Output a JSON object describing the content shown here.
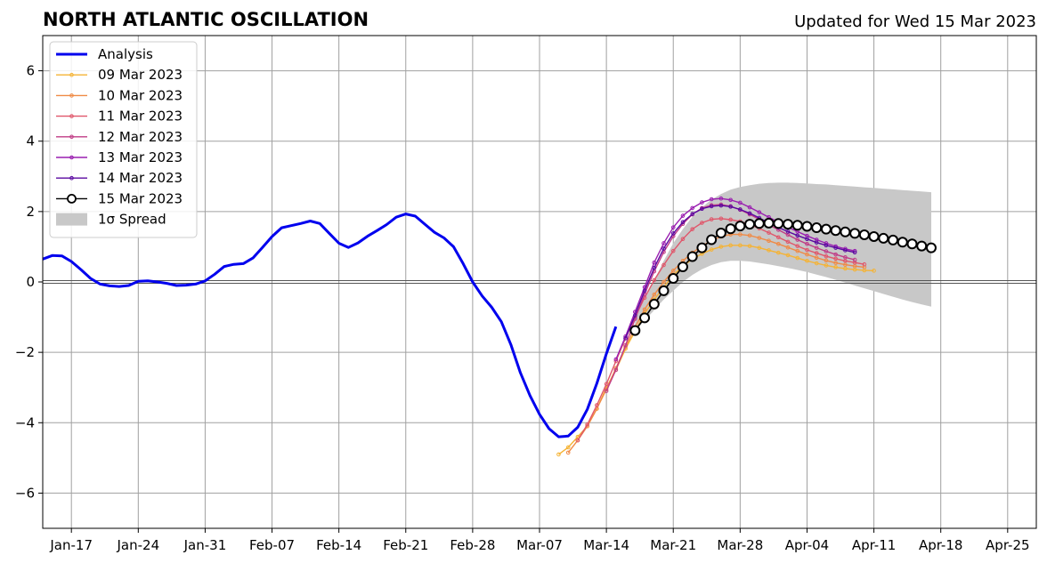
{
  "chart_data": {
    "type": "line",
    "title": "NORTH ATLANTIC OSCILLATION",
    "subtitle": "Updated for Wed 15 Mar 2023",
    "xlabel": "",
    "ylabel": "",
    "x_start": "2023-01-14",
    "xlim": [
      0,
      104
    ],
    "ylim": [
      -7,
      7
    ],
    "yticks": [
      -6,
      -4,
      -2,
      0,
      2,
      4,
      6
    ],
    "ytick_labels": [
      "−6",
      "−4",
      "−2",
      "0",
      "2",
      "4",
      "6"
    ],
    "xticks": [
      {
        "x": 3,
        "label": "Jan-17"
      },
      {
        "x": 10,
        "label": "Jan-24"
      },
      {
        "x": 17,
        "label": "Jan-31"
      },
      {
        "x": 24,
        "label": "Feb-07"
      },
      {
        "x": 31,
        "label": "Feb-14"
      },
      {
        "x": 38,
        "label": "Feb-21"
      },
      {
        "x": 45,
        "label": "Feb-28"
      },
      {
        "x": 52,
        "label": "Mar-07"
      },
      {
        "x": 59,
        "label": "Mar-14"
      },
      {
        "x": 66,
        "label": "Mar-21"
      },
      {
        "x": 73,
        "label": "Mar-28"
      },
      {
        "x": 80,
        "label": "Apr-04"
      },
      {
        "x": 87,
        "label": "Apr-11"
      },
      {
        "x": 94,
        "label": "Apr-18"
      },
      {
        "x": 101,
        "label": "Apr-25"
      }
    ],
    "grid": true,
    "legend_position": "top-left",
    "analysis": {
      "name": "Analysis",
      "color": "#0000ee",
      "x_start": 0,
      "values": [
        0.65,
        0.75,
        0.74,
        0.58,
        0.35,
        0.1,
        -0.06,
        -0.11,
        -0.13,
        -0.1,
        0.02,
        0.03,
        0.0,
        -0.04,
        -0.1,
        -0.09,
        -0.06,
        0.03,
        0.22,
        0.44,
        0.5,
        0.52,
        0.68,
        0.98,
        1.29,
        1.54,
        1.6,
        1.66,
        1.73,
        1.66,
        1.38,
        1.1,
        0.98,
        1.11,
        1.3,
        1.46,
        1.63,
        1.84,
        1.93,
        1.87,
        1.64,
        1.41,
        1.25,
        1.0,
        0.52,
        0.0,
        -0.4,
        -0.72,
        -1.13,
        -1.78,
        -2.58,
        -3.23,
        -3.76,
        -4.17,
        -4.4,
        -4.38,
        -4.13,
        -3.62,
        -2.88,
        -2.04,
        -1.27
      ]
    },
    "forecasts": [
      {
        "name": "09 Mar 2023",
        "color": "#f5b335",
        "x_start": 54,
        "values": [
          -4.9,
          -4.7,
          -4.4,
          -4.1,
          -3.6,
          -3.0,
          -2.5,
          -1.9,
          -1.4,
          -0.9,
          -0.5,
          -0.15,
          0.2,
          0.45,
          0.65,
          0.8,
          0.92,
          1.0,
          1.04,
          1.04,
          1.02,
          0.97,
          0.9,
          0.83,
          0.76,
          0.68,
          0.6,
          0.53,
          0.47,
          0.42,
          0.38,
          0.35,
          0.33,
          0.32
        ]
      },
      {
        "name": "10 Mar 2023",
        "color": "#f08a45",
        "x_start": 55,
        "values": [
          -4.85,
          -4.5,
          -4.1,
          -3.6,
          -3.05,
          -2.45,
          -1.85,
          -1.28,
          -0.78,
          -0.36,
          0.0,
          0.32,
          0.6,
          0.83,
          1.02,
          1.18,
          1.29,
          1.35,
          1.35,
          1.32,
          1.25,
          1.17,
          1.08,
          0.98,
          0.88,
          0.78,
          0.69,
          0.61,
          0.54,
          0.49,
          0.45,
          0.42
        ]
      },
      {
        "name": "11 Mar 2023",
        "color": "#e0566a",
        "x_start": 56,
        "values": [
          -4.5,
          -4.05,
          -3.5,
          -2.9,
          -2.25,
          -1.6,
          -1.0,
          -0.45,
          0.05,
          0.48,
          0.88,
          1.22,
          1.5,
          1.68,
          1.78,
          1.8,
          1.77,
          1.72,
          1.63,
          1.52,
          1.4,
          1.27,
          1.14,
          1.02,
          0.91,
          0.82,
          0.73,
          0.66,
          0.6,
          0.55,
          0.5
        ]
      },
      {
        "name": "12 Mar 2023",
        "color": "#c03c86",
        "x_start": 59,
        "values": [
          -3.1,
          -2.5,
          -1.8,
          -1.05,
          -0.35,
          0.3,
          0.85,
          1.3,
          1.65,
          1.92,
          2.1,
          2.18,
          2.2,
          2.15,
          2.05,
          1.92,
          1.78,
          1.63,
          1.48,
          1.34,
          1.2,
          1.08,
          0.97,
          0.87,
          0.78,
          0.7,
          0.63
        ]
      },
      {
        "name": "13 Mar 2023",
        "color": "#9a1eb0",
        "x_start": 60,
        "values": [
          -2.2,
          -1.55,
          -0.85,
          -0.15,
          0.55,
          1.1,
          1.55,
          1.88,
          2.1,
          2.26,
          2.35,
          2.37,
          2.33,
          2.25,
          2.12,
          1.98,
          1.84,
          1.7,
          1.56,
          1.43,
          1.31,
          1.2,
          1.1,
          1.01,
          0.94,
          0.88
        ]
      },
      {
        "name": "14 Mar 2023",
        "color": "#5a08a0",
        "x_start": 61,
        "values": [
          -1.6,
          -0.95,
          -0.25,
          0.4,
          0.95,
          1.38,
          1.7,
          1.93,
          2.08,
          2.15,
          2.17,
          2.14,
          2.06,
          1.95,
          1.82,
          1.68,
          1.55,
          1.43,
          1.32,
          1.22,
          1.12,
          1.04,
          0.97,
          0.9,
          0.84
        ]
      },
      {
        "name": "15 Mar 2023",
        "color": "#000000",
        "marker_fill": "#ffffff",
        "x_start": 62,
        "values": [
          -1.38,
          -1.02,
          -0.63,
          -0.25,
          0.1,
          0.43,
          0.72,
          0.97,
          1.2,
          1.39,
          1.51,
          1.59,
          1.64,
          1.66,
          1.67,
          1.66,
          1.64,
          1.61,
          1.58,
          1.54,
          1.5,
          1.46,
          1.42,
          1.38,
          1.34,
          1.29,
          1.24,
          1.19,
          1.13,
          1.08,
          1.02,
          0.97
        ]
      }
    ],
    "spread": {
      "name": "1σ Spread",
      "color": "#c8c8c8",
      "x_start": 62,
      "upper": [
        -1.0,
        -0.5,
        0.05,
        0.6,
        1.1,
        1.5,
        1.85,
        2.12,
        2.34,
        2.5,
        2.62,
        2.7,
        2.75,
        2.79,
        2.81,
        2.82,
        2.82,
        2.81,
        2.8,
        2.78,
        2.77,
        2.75,
        2.73,
        2.71,
        2.69,
        2.67,
        2.65,
        2.63,
        2.61,
        2.59,
        2.57,
        2.55
      ],
      "lower": [
        -1.4,
        -1.1,
        -0.8,
        -0.5,
        -0.25,
        0.0,
        0.2,
        0.36,
        0.48,
        0.56,
        0.6,
        0.6,
        0.58,
        0.54,
        0.5,
        0.45,
        0.4,
        0.34,
        0.28,
        0.21,
        0.14,
        0.06,
        -0.02,
        -0.1,
        -0.18,
        -0.26,
        -0.34,
        -0.42,
        -0.5,
        -0.57,
        -0.64,
        -0.7
      ]
    },
    "legend": [
      {
        "label": "Analysis",
        "color": "#0000ee",
        "kind": "analysis"
      },
      {
        "label": "09 Mar 2023",
        "color": "#f5b335",
        "kind": "small"
      },
      {
        "label": "10 Mar 2023",
        "color": "#f08a45",
        "kind": "small"
      },
      {
        "label": "11 Mar 2023",
        "color": "#e0566a",
        "kind": "small"
      },
      {
        "label": "12 Mar 2023",
        "color": "#c03c86",
        "kind": "small"
      },
      {
        "label": "13 Mar 2023",
        "color": "#9a1eb0",
        "kind": "small"
      },
      {
        "label": "14 Mar 2023",
        "color": "#5a08a0",
        "kind": "small"
      },
      {
        "label": "15 Mar 2023",
        "color": "#000000",
        "kind": "big"
      },
      {
        "label": "1σ Spread",
        "color": "#c8c8c8",
        "kind": "patch"
      }
    ]
  }
}
